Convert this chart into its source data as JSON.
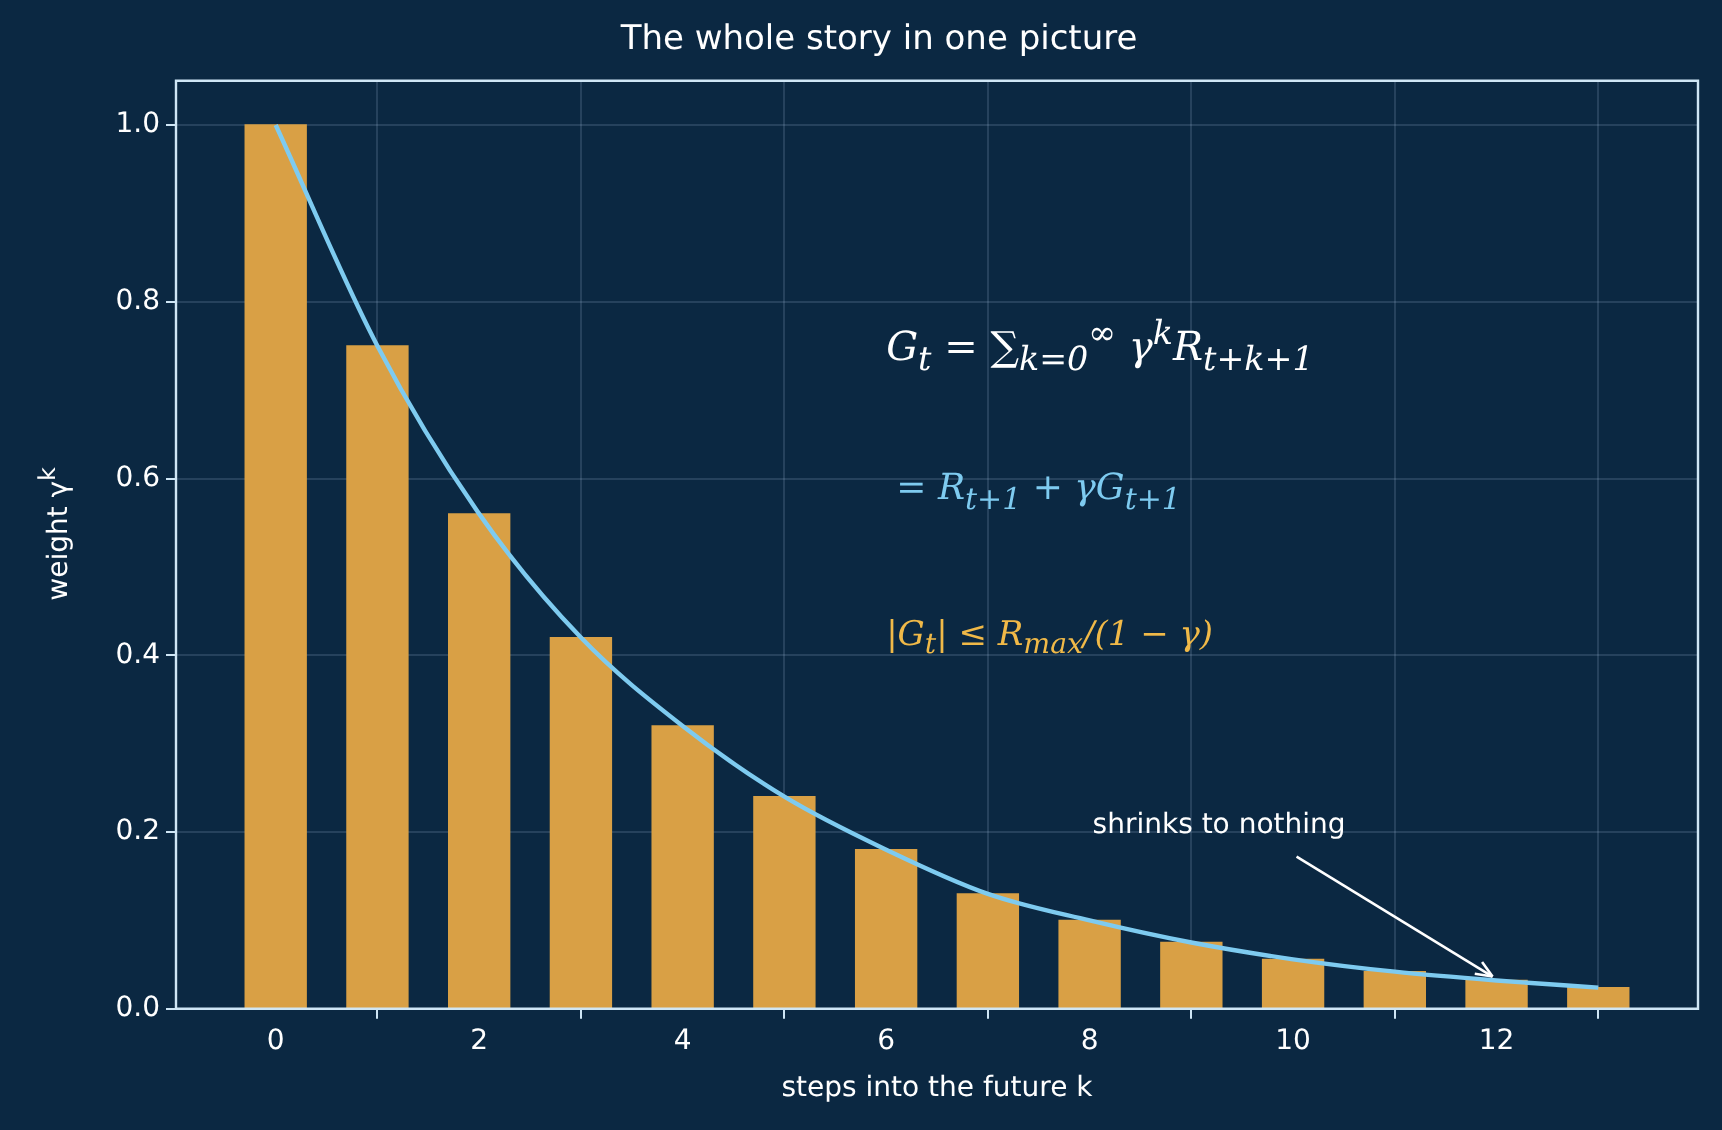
{
  "chart_data": {
    "type": "bar",
    "title": "The whole story in one picture",
    "xlabel": "steps into the future k",
    "ylabel": "weight γ$^{k}$",
    "x": [
      0,
      1,
      2,
      3,
      4,
      5,
      6,
      7,
      8,
      9,
      10,
      11,
      12,
      13
    ],
    "series": [
      {
        "color": "#d9a045",
        "values": [
          1.0,
          0.75,
          0.56,
          0.42,
          0.32,
          0.24,
          0.18,
          0.13,
          0.1,
          0.075,
          0.056,
          0.042,
          0.032,
          0.024
        ]
      },
      {
        "type": "line",
        "color": "#7ecbf0",
        "values": [
          1.0,
          0.75,
          0.56,
          0.42,
          0.32,
          0.24,
          0.18,
          0.13,
          0.1,
          0.075,
          0.056,
          0.042,
          0.032,
          0.024
        ]
      }
    ],
    "xlim": [
      -0.98,
      13.98
    ],
    "xticks": [
      0,
      2,
      4,
      6,
      8,
      10,
      12
    ],
    "ylim": [
      0,
      1.05
    ],
    "yticks": [
      {
        "value": 0,
        "label": "0.0"
      },
      0.2,
      0.4,
      0.6,
      0.8,
      {
        "value": 1,
        "label": "1.0"
      }
    ],
    "grid": true,
    "legend": false,
    "marker": "none",
    "line_style": "solid",
    "annotations": [
      "G$_{t}$ = ∑$_{k=0}$$^{∞}$ γ$^{k}$R$_{t+k+1}$",
      "= R$_{t+1}$ + γG$_{t+1}$",
      "|G$_{t}$| ≤ R$_{max}$/(1 − γ)",
      {
        "text": "shrinks to nothing",
        "x": 12,
        "y": 0.032
      }
    ]
  }
}
